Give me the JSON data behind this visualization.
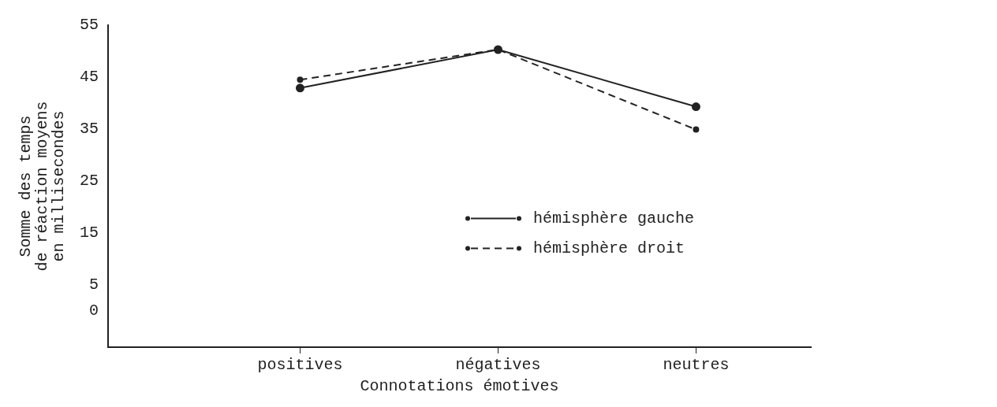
{
  "chart_data": {
    "type": "line",
    "xlabel": "Connotations émotives",
    "ylabel": "Somme des temps\nde réaction moyens\nen millisecondes",
    "categories": [
      "positives",
      "négatives",
      "neutres"
    ],
    "ylim": [
      -7,
      55
    ],
    "yticks": [
      0,
      5,
      15,
      25,
      35,
      45,
      55
    ],
    "grid": false,
    "legend": "right",
    "marker": "circle",
    "series": [
      {
        "name": "hémisphère gauche",
        "color": "#222222",
        "line_style": "solid",
        "values": [
          42.9,
          50.3,
          39.3
        ]
      },
      {
        "name": "hémisphère droit",
        "color": "#222222",
        "line_style": "dashed",
        "values": [
          44.5,
          50.3,
          34.9
        ]
      }
    ]
  }
}
